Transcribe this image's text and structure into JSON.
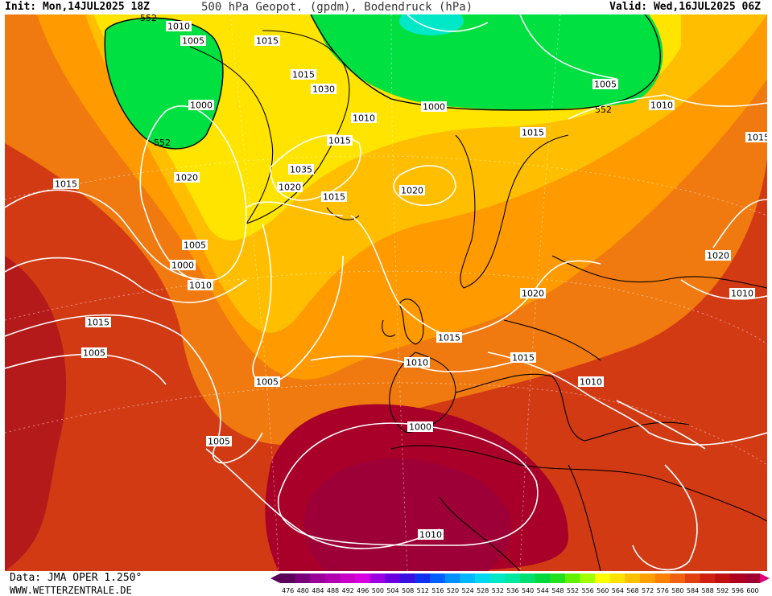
{
  "header": {
    "init": "Init: Mon,14JUL2025 18Z",
    "title": "500 hPa Geopot. (gpdm), Bodendruck (hPa)",
    "valid": "Valid: Wed,16JUL2025 06Z"
  },
  "footer": {
    "data_source": "Data: JMA OPER 1.250°",
    "website": "WWW.WETTERZENTRALE.DE"
  },
  "scale": {
    "values": [
      "476",
      "480",
      "484",
      "488",
      "492",
      "496",
      "500",
      "504",
      "508",
      "512",
      "516",
      "520",
      "524",
      "528",
      "532",
      "536",
      "540",
      "544",
      "548",
      "552",
      "556",
      "560",
      "564",
      "568",
      "572",
      "576",
      "580",
      "584",
      "588",
      "592",
      "596",
      "600"
    ],
    "colors": [
      "#5a005a",
      "#7a007a",
      "#9a009a",
      "#b000b0",
      "#c800c8",
      "#d800e0",
      "#9a00e0",
      "#6a00e0",
      "#3a10e0",
      "#1030f0",
      "#0060ff",
      "#0090ff",
      "#00b8ff",
      "#00d8f0",
      "#00e8c8",
      "#00e8a0",
      "#00e070",
      "#00d840",
      "#20e020",
      "#60f000",
      "#a0ff00",
      "#ffff00",
      "#ffe000",
      "#ffc000",
      "#ffa000",
      "#ff8000",
      "#f06010",
      "#e04010",
      "#d02010",
      "#c01010",
      "#b00020",
      "#a00030"
    ]
  },
  "map": {
    "geopotential_labels": [
      "552",
      "552",
      "552",
      "552"
    ],
    "pressure_labels": [
      "1010",
      "1005",
      "1015",
      "1000",
      "1015",
      "1020",
      "1005",
      "1000",
      "1010",
      "1015",
      "1035",
      "1030",
      "1020",
      "1015",
      "1020",
      "1010",
      "1015",
      "1000",
      "1005",
      "1010",
      "1015",
      "1020",
      "1010",
      "1015",
      "1020",
      "1015",
      "1010",
      "1015",
      "1010",
      "1015",
      "1005",
      "1000",
      "1005",
      "1005",
      "1010"
    ]
  }
}
